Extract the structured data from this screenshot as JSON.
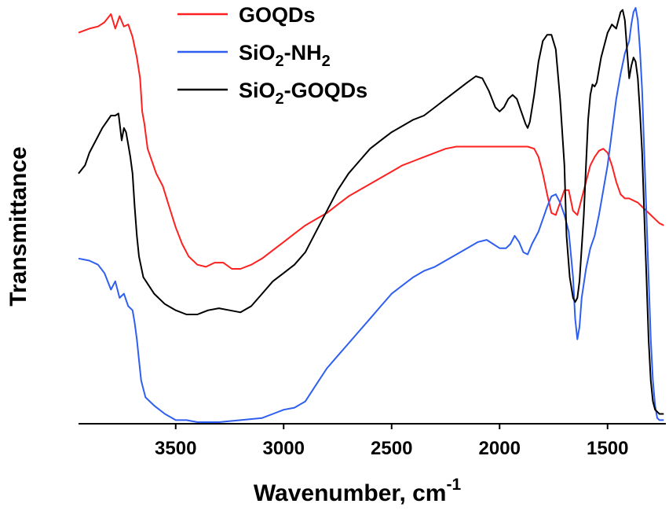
{
  "chart_data": {
    "type": "line",
    "xlabel": "Wavenumber, cm",
    "xlabel_sup": "-1",
    "ylabel": "Transmittance",
    "xlim": [
      3950,
      1230
    ],
    "ylim": [
      0,
      100
    ],
    "x_reversed": true,
    "x_ticks": [
      3500,
      3000,
      2500,
      2000,
      1500
    ],
    "x_tick_labels": [
      "3500",
      "3000",
      "2500",
      "2000",
      "1500"
    ],
    "y_ticks_shown": false,
    "grid": false,
    "legend_position": "top-center",
    "series": [
      {
        "name": "GOQDs",
        "name_parts": [
          {
            "t": "GOQDs",
            "sub": false
          }
        ],
        "color": "#ff2020",
        "points": [
          [
            3950,
            94
          ],
          [
            3900,
            95
          ],
          [
            3860,
            95.5
          ],
          [
            3830,
            96.5
          ],
          [
            3800,
            98.5
          ],
          [
            3780,
            95
          ],
          [
            3760,
            98
          ],
          [
            3740,
            95.5
          ],
          [
            3720,
            96
          ],
          [
            3700,
            93
          ],
          [
            3680,
            88
          ],
          [
            3665,
            83
          ],
          [
            3655,
            75
          ],
          [
            3645,
            72
          ],
          [
            3630,
            66
          ],
          [
            3610,
            63
          ],
          [
            3590,
            60
          ],
          [
            3560,
            57
          ],
          [
            3530,
            52
          ],
          [
            3500,
            47
          ],
          [
            3470,
            43
          ],
          [
            3440,
            40
          ],
          [
            3400,
            38
          ],
          [
            3360,
            37.5
          ],
          [
            3320,
            38.5
          ],
          [
            3280,
            38.5
          ],
          [
            3240,
            37
          ],
          [
            3200,
            37
          ],
          [
            3150,
            38
          ],
          [
            3100,
            39.5
          ],
          [
            3050,
            41.5
          ],
          [
            3000,
            43.5
          ],
          [
            2950,
            45.5
          ],
          [
            2900,
            47.5
          ],
          [
            2850,
            49
          ],
          [
            2800,
            50.5
          ],
          [
            2750,
            52.5
          ],
          [
            2700,
            54.5
          ],
          [
            2650,
            56
          ],
          [
            2600,
            57.5
          ],
          [
            2550,
            59
          ],
          [
            2500,
            60.5
          ],
          [
            2450,
            62
          ],
          [
            2400,
            63
          ],
          [
            2350,
            64
          ],
          [
            2300,
            65
          ],
          [
            2250,
            66
          ],
          [
            2200,
            66.5
          ],
          [
            2150,
            66.5
          ],
          [
            2100,
            66.5
          ],
          [
            2000,
            66.5
          ],
          [
            1950,
            66.5
          ],
          [
            1900,
            66.5
          ],
          [
            1870,
            66.5
          ],
          [
            1840,
            66
          ],
          [
            1820,
            64
          ],
          [
            1800,
            60
          ],
          [
            1780,
            55
          ],
          [
            1760,
            50.5
          ],
          [
            1740,
            50
          ],
          [
            1720,
            53
          ],
          [
            1700,
            56
          ],
          [
            1680,
            56
          ],
          [
            1660,
            51
          ],
          [
            1640,
            50
          ],
          [
            1620,
            54
          ],
          [
            1600,
            58
          ],
          [
            1580,
            62
          ],
          [
            1560,
            64
          ],
          [
            1540,
            65.5
          ],
          [
            1520,
            66
          ],
          [
            1500,
            65
          ],
          [
            1480,
            62
          ],
          [
            1460,
            58
          ],
          [
            1440,
            55
          ],
          [
            1420,
            54
          ],
          [
            1400,
            54
          ],
          [
            1380,
            53.5
          ],
          [
            1360,
            53
          ],
          [
            1340,
            52
          ],
          [
            1320,
            51
          ],
          [
            1300,
            50
          ],
          [
            1280,
            49
          ],
          [
            1260,
            48
          ],
          [
            1240,
            47.5
          ]
        ]
      },
      {
        "name": "SiO2-NH2",
        "name_parts": [
          {
            "t": "SiO",
            "sub": false
          },
          {
            "t": "2",
            "sub": true
          },
          {
            "t": "-NH",
            "sub": false
          },
          {
            "t": "2",
            "sub": true
          }
        ],
        "color": "#2f5ff0",
        "points": [
          [
            3950,
            39.5
          ],
          [
            3900,
            39
          ],
          [
            3860,
            38
          ],
          [
            3830,
            36
          ],
          [
            3800,
            32
          ],
          [
            3780,
            34
          ],
          [
            3760,
            30
          ],
          [
            3740,
            31
          ],
          [
            3720,
            28
          ],
          [
            3700,
            27
          ],
          [
            3690,
            24
          ],
          [
            3680,
            20
          ],
          [
            3670,
            15
          ],
          [
            3660,
            10
          ],
          [
            3640,
            6
          ],
          [
            3600,
            4
          ],
          [
            3550,
            2
          ],
          [
            3500,
            0.5
          ],
          [
            3450,
            0.5
          ],
          [
            3400,
            0
          ],
          [
            3300,
            0
          ],
          [
            3200,
            0.5
          ],
          [
            3100,
            1
          ],
          [
            3050,
            2
          ],
          [
            3000,
            3
          ],
          [
            2950,
            3.5
          ],
          [
            2900,
            5
          ],
          [
            2850,
            9
          ],
          [
            2800,
            13
          ],
          [
            2750,
            16
          ],
          [
            2700,
            19
          ],
          [
            2650,
            22
          ],
          [
            2600,
            25
          ],
          [
            2550,
            28
          ],
          [
            2500,
            31
          ],
          [
            2450,
            33
          ],
          [
            2400,
            35
          ],
          [
            2350,
            36.5
          ],
          [
            2300,
            37.5
          ],
          [
            2250,
            39
          ],
          [
            2200,
            40.5
          ],
          [
            2150,
            42
          ],
          [
            2100,
            43.5
          ],
          [
            2060,
            44
          ],
          [
            2030,
            43
          ],
          [
            2000,
            42
          ],
          [
            1970,
            42
          ],
          [
            1950,
            43
          ],
          [
            1930,
            45
          ],
          [
            1910,
            43.5
          ],
          [
            1890,
            41
          ],
          [
            1870,
            40.5
          ],
          [
            1850,
            43
          ],
          [
            1820,
            46
          ],
          [
            1800,
            49
          ],
          [
            1780,
            52
          ],
          [
            1760,
            54.5
          ],
          [
            1740,
            55
          ],
          [
            1720,
            53
          ],
          [
            1700,
            50
          ],
          [
            1680,
            46
          ],
          [
            1660,
            35
          ],
          [
            1650,
            25
          ],
          [
            1640,
            20
          ],
          [
            1630,
            23
          ],
          [
            1620,
            30
          ],
          [
            1600,
            37
          ],
          [
            1580,
            42
          ],
          [
            1560,
            45
          ],
          [
            1540,
            50
          ],
          [
            1520,
            56
          ],
          [
            1500,
            62
          ],
          [
            1480,
            70
          ],
          [
            1460,
            78
          ],
          [
            1440,
            84
          ],
          [
            1420,
            89
          ],
          [
            1400,
            92
          ],
          [
            1390,
            96
          ],
          [
            1380,
            99
          ],
          [
            1370,
            100
          ],
          [
            1360,
            97
          ],
          [
            1350,
            90
          ],
          [
            1340,
            80
          ],
          [
            1330,
            65
          ],
          [
            1320,
            50
          ],
          [
            1310,
            35
          ],
          [
            1300,
            20
          ],
          [
            1290,
            10
          ],
          [
            1280,
            4
          ],
          [
            1270,
            1
          ],
          [
            1260,
            0.5
          ],
          [
            1240,
            0.5
          ]
        ]
      },
      {
        "name": "SiO2-GOQDs",
        "name_parts": [
          {
            "t": "SiO",
            "sub": false
          },
          {
            "t": "2",
            "sub": true
          },
          {
            "t": "-GOQDs",
            "sub": false
          }
        ],
        "color": "#000000",
        "points": [
          [
            3950,
            60
          ],
          [
            3920,
            62
          ],
          [
            3900,
            65
          ],
          [
            3880,
            67
          ],
          [
            3860,
            69
          ],
          [
            3840,
            71
          ],
          [
            3820,
            72.5
          ],
          [
            3800,
            74
          ],
          [
            3780,
            74
          ],
          [
            3765,
            74.5
          ],
          [
            3750,
            68
          ],
          [
            3740,
            71
          ],
          [
            3730,
            70
          ],
          [
            3720,
            67
          ],
          [
            3710,
            64
          ],
          [
            3700,
            60
          ],
          [
            3690,
            52
          ],
          [
            3680,
            45
          ],
          [
            3670,
            40
          ],
          [
            3650,
            35
          ],
          [
            3600,
            31
          ],
          [
            3550,
            28.5
          ],
          [
            3500,
            27
          ],
          [
            3450,
            26
          ],
          [
            3400,
            26
          ],
          [
            3350,
            27
          ],
          [
            3300,
            27.5
          ],
          [
            3250,
            27
          ],
          [
            3200,
            26.5
          ],
          [
            3150,
            28
          ],
          [
            3100,
            31
          ],
          [
            3050,
            34
          ],
          [
            3000,
            36
          ],
          [
            2950,
            38
          ],
          [
            2900,
            41
          ],
          [
            2850,
            46
          ],
          [
            2800,
            51
          ],
          [
            2750,
            56
          ],
          [
            2700,
            60
          ],
          [
            2650,
            63
          ],
          [
            2600,
            66
          ],
          [
            2550,
            68
          ],
          [
            2500,
            70
          ],
          [
            2450,
            71.5
          ],
          [
            2400,
            73
          ],
          [
            2350,
            74
          ],
          [
            2300,
            76
          ],
          [
            2250,
            78
          ],
          [
            2200,
            80
          ],
          [
            2150,
            82
          ],
          [
            2110,
            83.5
          ],
          [
            2080,
            83
          ],
          [
            2050,
            80
          ],
          [
            2020,
            76
          ],
          [
            2000,
            75
          ],
          [
            1980,
            76
          ],
          [
            1960,
            78
          ],
          [
            1940,
            79
          ],
          [
            1920,
            78
          ],
          [
            1900,
            75
          ],
          [
            1880,
            72
          ],
          [
            1870,
            71
          ],
          [
            1860,
            72.5
          ],
          [
            1840,
            79
          ],
          [
            1820,
            87
          ],
          [
            1800,
            92
          ],
          [
            1780,
            93.5
          ],
          [
            1760,
            93.5
          ],
          [
            1740,
            90
          ],
          [
            1720,
            78
          ],
          [
            1700,
            62
          ],
          [
            1690,
            45
          ],
          [
            1675,
            35
          ],
          [
            1660,
            30
          ],
          [
            1650,
            29
          ],
          [
            1640,
            30
          ],
          [
            1630,
            34
          ],
          [
            1610,
            50
          ],
          [
            1600,
            62
          ],
          [
            1590,
            73
          ],
          [
            1580,
            79
          ],
          [
            1570,
            81.5
          ],
          [
            1560,
            81
          ],
          [
            1550,
            82
          ],
          [
            1530,
            88
          ],
          [
            1500,
            94
          ],
          [
            1480,
            96
          ],
          [
            1460,
            95
          ],
          [
            1440,
            99
          ],
          [
            1430,
            99.5
          ],
          [
            1420,
            97
          ],
          [
            1410,
            90
          ],
          [
            1400,
            83
          ],
          [
            1390,
            86
          ],
          [
            1380,
            88
          ],
          [
            1370,
            87
          ],
          [
            1360,
            83
          ],
          [
            1350,
            75
          ],
          [
            1340,
            65
          ],
          [
            1330,
            50
          ],
          [
            1320,
            35
          ],
          [
            1310,
            20
          ],
          [
            1300,
            10
          ],
          [
            1290,
            5
          ],
          [
            1280,
            3
          ],
          [
            1260,
            2
          ],
          [
            1240,
            2
          ]
        ]
      }
    ]
  }
}
